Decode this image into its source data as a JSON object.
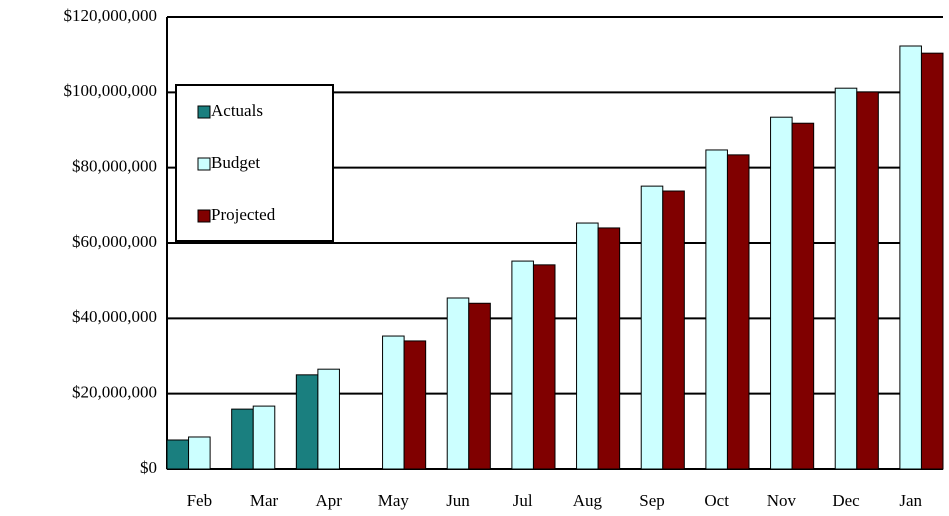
{
  "chart_data": {
    "type": "bar",
    "categories": [
      "Feb",
      "Mar",
      "Apr",
      "May",
      "Jun",
      "Jul",
      "Aug",
      "Sep",
      "Oct",
      "Nov",
      "Dec",
      "Jan"
    ],
    "series": [
      {
        "name": "Actuals",
        "color": "#1a7f7f",
        "values": [
          7700000,
          15900000,
          25000000,
          null,
          null,
          null,
          null,
          null,
          null,
          null,
          null,
          null
        ]
      },
      {
        "name": "Budget",
        "color": "#ccffff",
        "values": [
          8500000,
          16700000,
          26500000,
          35300000,
          45400000,
          55200000,
          65300000,
          75100000,
          84700000,
          93400000,
          101100000,
          112300000
        ]
      },
      {
        "name": "Projected",
        "color": "#800000",
        "values": [
          null,
          null,
          null,
          34000000,
          44000000,
          54200000,
          64000000,
          73800000,
          83400000,
          91800000,
          100100000,
          110400000
        ]
      }
    ],
    "ylim": [
      0,
      120000000
    ],
    "yticks": [
      {
        "value": 0,
        "label": "$0"
      },
      {
        "value": 20000000,
        "label": "$20,000,000"
      },
      {
        "value": 40000000,
        "label": "$40,000,000"
      },
      {
        "value": 60000000,
        "label": "$60,000,000"
      },
      {
        "value": 80000000,
        "label": "$80,000,000"
      },
      {
        "value": 100000000,
        "label": "$100,000,000"
      },
      {
        "value": 120000000,
        "label": "$120,000,000"
      }
    ],
    "grid": true,
    "legend": "upper left"
  }
}
